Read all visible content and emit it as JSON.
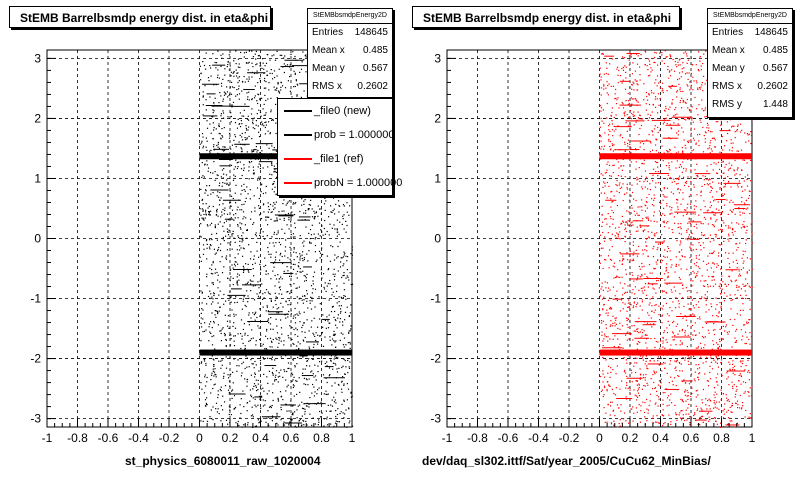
{
  "chart_data": [
    {
      "type": "scatter",
      "title": "StEMB Barrelbsmdp energy dist. in eta&phi",
      "xlabel": "st_physics_6080011_raw_1020004",
      "ylabel": "",
      "xlim": [
        -1,
        1
      ],
      "ylim": [
        -3.14,
        3.14
      ],
      "xticks": [
        "-1",
        "-0.8",
        "-0.6",
        "-0.4",
        "-0.2",
        "0",
        "0.2",
        "0.4",
        "0.6",
        "0.8",
        "1"
      ],
      "yticks": [
        "3",
        "2",
        "1",
        "0",
        "-1",
        "-2",
        "-3"
      ],
      "grid": true,
      "point_color": "#000000",
      "stats": {
        "name": "StEMBbsmdpEnergy2D",
        "rows": [
          {
            "label": "Entries",
            "value": "148645"
          },
          {
            "label": "Mean x",
            "value": "0.485"
          },
          {
            "label": "Mean y",
            "value": "0.567"
          },
          {
            "label": "RMS x",
            "value": "0.2602"
          }
        ]
      },
      "legend": [
        {
          "label": "_file0 (new)",
          "color": "#000000"
        },
        {
          "label": "prob = 1.000000",
          "color": "#000000"
        },
        {
          "label": "_file1 (ref)",
          "color": "#ff0000"
        },
        {
          "label": "probN = 1.000000",
          "color": "#ff0000"
        }
      ],
      "bands": [
        {
          "y": 1.37,
          "color": "#000000"
        },
        {
          "y": -1.9,
          "color": "#000000"
        }
      ]
    },
    {
      "type": "scatter",
      "title": "StEMB Barrelbsmdp energy dist. in eta&phi",
      "xlabel": "dev/daq_sl302.ittf/Sat/year_2005/CuCu62_MinBias/",
      "ylabel": "",
      "xlim": [
        -1,
        1
      ],
      "ylim": [
        -3.14,
        3.14
      ],
      "xticks": [
        "-1",
        "-0.8",
        "-0.6",
        "-0.4",
        "-0.2",
        "0",
        "0.2",
        "0.4",
        "0.6",
        "0.8",
        "1"
      ],
      "yticks": [
        "3",
        "2",
        "1",
        "0",
        "-1",
        "-2",
        "-3"
      ],
      "grid": true,
      "point_color": "#ff0000",
      "stats": {
        "name": "StEMBbsmdpEnergy2D",
        "rows": [
          {
            "label": "Entries",
            "value": "148645"
          },
          {
            "label": "Mean x",
            "value": "0.485"
          },
          {
            "label": "Mean y",
            "value": "0.567"
          },
          {
            "label": "RMS x",
            "value": "0.2602"
          },
          {
            "label": "RMS y",
            "value": "1.448"
          }
        ]
      },
      "bands": [
        {
          "y": 1.37,
          "color": "#ff0000"
        },
        {
          "y": -1.9,
          "color": "#ff0000"
        }
      ]
    }
  ]
}
